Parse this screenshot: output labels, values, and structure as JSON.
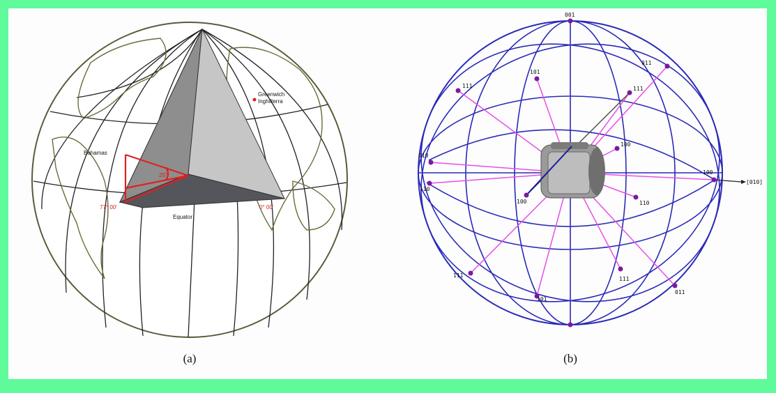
{
  "panel_a": {
    "caption": "(a)",
    "labels": {
      "greenwich": [
        "Greenwich",
        "Inghilterra"
      ],
      "equator": "Equator",
      "bahamas": "Bahamas",
      "angle": "25°",
      "lon_left": "77° 00'",
      "lon_right": "0° 00'"
    }
  },
  "panel_b": {
    "caption": "(b)",
    "axis_label": "[010]",
    "poles": [
      "001",
      "101",
      "011",
      "111",
      "111",
      "010",
      "100",
      "100",
      "110",
      "100",
      "110",
      "111",
      "111",
      "101",
      "011",
      "001",
      "010"
    ]
  },
  "colors": {
    "background": "#5ffb9a",
    "sphere_lines_b": "#2a2ab8",
    "pole_connectors": "#e84ee8",
    "latitude_red": "#e02020"
  }
}
